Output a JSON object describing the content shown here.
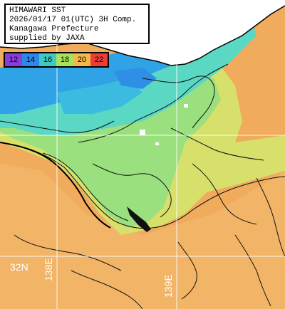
{
  "title": {
    "line1": "HIMAWARI SST",
    "line2": "2026/01/17 01(UTC) 3H Comp.",
    "line3": "Kanagawa Prefecture",
    "line4": "supplied by JAXA"
  },
  "legend": {
    "items": [
      {
        "label": "12",
        "color": "#8a3cd6"
      },
      {
        "label": "14",
        "color": "#2f86ea"
      },
      {
        "label": "16",
        "color": "#3fc9c0"
      },
      {
        "label": "18",
        "color": "#a6e35a"
      },
      {
        "label": "20",
        "color": "#f4b84a"
      },
      {
        "label": "22",
        "color": "#ee3d36"
      }
    ]
  },
  "grid_labels": {
    "lat": "32N",
    "lon": "138E",
    "lon2": "139E"
  },
  "colors": {
    "warm": "#f2b060",
    "warm_light": "#f6c27a",
    "mid": "#c6e06a",
    "mid_green": "#8fe07a",
    "cool": "#55d7c8",
    "cold": "#2f9fe6",
    "land": "#ffffff"
  }
}
